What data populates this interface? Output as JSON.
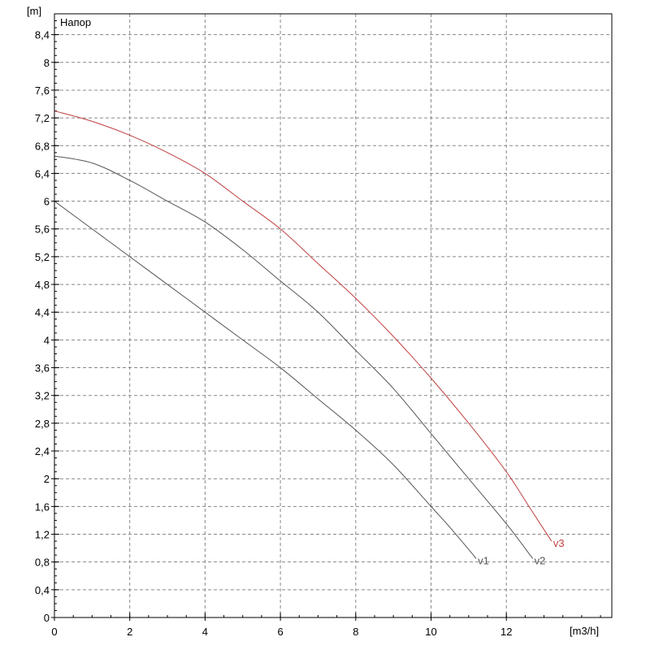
{
  "chart_data": {
    "type": "line",
    "title": "Напор",
    "xlabel": "[m3/h]",
    "ylabel": "[m]",
    "xlim": [
      0,
      14.8
    ],
    "ylim": [
      0,
      8.7
    ],
    "grid": true,
    "x_major_ticks": [
      0,
      2,
      4,
      6,
      8,
      10,
      12
    ],
    "x_minor_step": 0.5,
    "y_major_ticks": [
      0,
      0.4,
      0.8,
      1.2,
      1.6,
      2,
      2.4,
      2.8,
      3.2,
      3.6,
      4,
      4.4,
      4.8,
      5.2,
      5.6,
      6,
      6.4,
      6.8,
      7.2,
      7.6,
      8,
      8.4
    ],
    "y_tick_labels": [
      "0",
      "0,4",
      "0,8",
      "1,2",
      "1,6",
      "2",
      "2,4",
      "2,8",
      "3,2",
      "3,6",
      "4",
      "4,4",
      "4,8",
      "5,2",
      "5,6",
      "6",
      "6,4",
      "6,8",
      "7,2",
      "7,6",
      "8",
      "8,4"
    ],
    "y_minor_step": 0.1,
    "series": [
      {
        "name": "v1",
        "color": "#555555",
        "points": [
          [
            0,
            6.0
          ],
          [
            1,
            5.6
          ],
          [
            2,
            5.2
          ],
          [
            3,
            4.8
          ],
          [
            4,
            4.4
          ],
          [
            5,
            4.0
          ],
          [
            6,
            3.6
          ],
          [
            7,
            3.15
          ],
          [
            8,
            2.7
          ],
          [
            9,
            2.2
          ],
          [
            10,
            1.6
          ],
          [
            10.5,
            1.3
          ],
          [
            11.2,
            0.85
          ]
        ]
      },
      {
        "name": "v2",
        "color": "#555555",
        "points": [
          [
            0,
            6.65
          ],
          [
            1,
            6.55
          ],
          [
            2,
            6.3
          ],
          [
            3,
            6.0
          ],
          [
            4,
            5.7
          ],
          [
            5,
            5.3
          ],
          [
            6,
            4.85
          ],
          [
            7,
            4.4
          ],
          [
            8,
            3.85
          ],
          [
            9,
            3.3
          ],
          [
            10,
            2.65
          ],
          [
            11,
            2.0
          ],
          [
            12,
            1.35
          ],
          [
            12.7,
            0.85
          ]
        ]
      },
      {
        "name": "v3",
        "color": "#c04040",
        "points": [
          [
            0,
            7.3
          ],
          [
            1,
            7.15
          ],
          [
            2,
            6.95
          ],
          [
            3,
            6.7
          ],
          [
            4,
            6.4
          ],
          [
            5,
            6.0
          ],
          [
            6,
            5.6
          ],
          [
            7,
            5.1
          ],
          [
            8,
            4.6
          ],
          [
            9,
            4.05
          ],
          [
            10,
            3.45
          ],
          [
            11,
            2.8
          ],
          [
            12,
            2.1
          ],
          [
            12.6,
            1.6
          ],
          [
            13.2,
            1.1
          ]
        ]
      }
    ]
  }
}
